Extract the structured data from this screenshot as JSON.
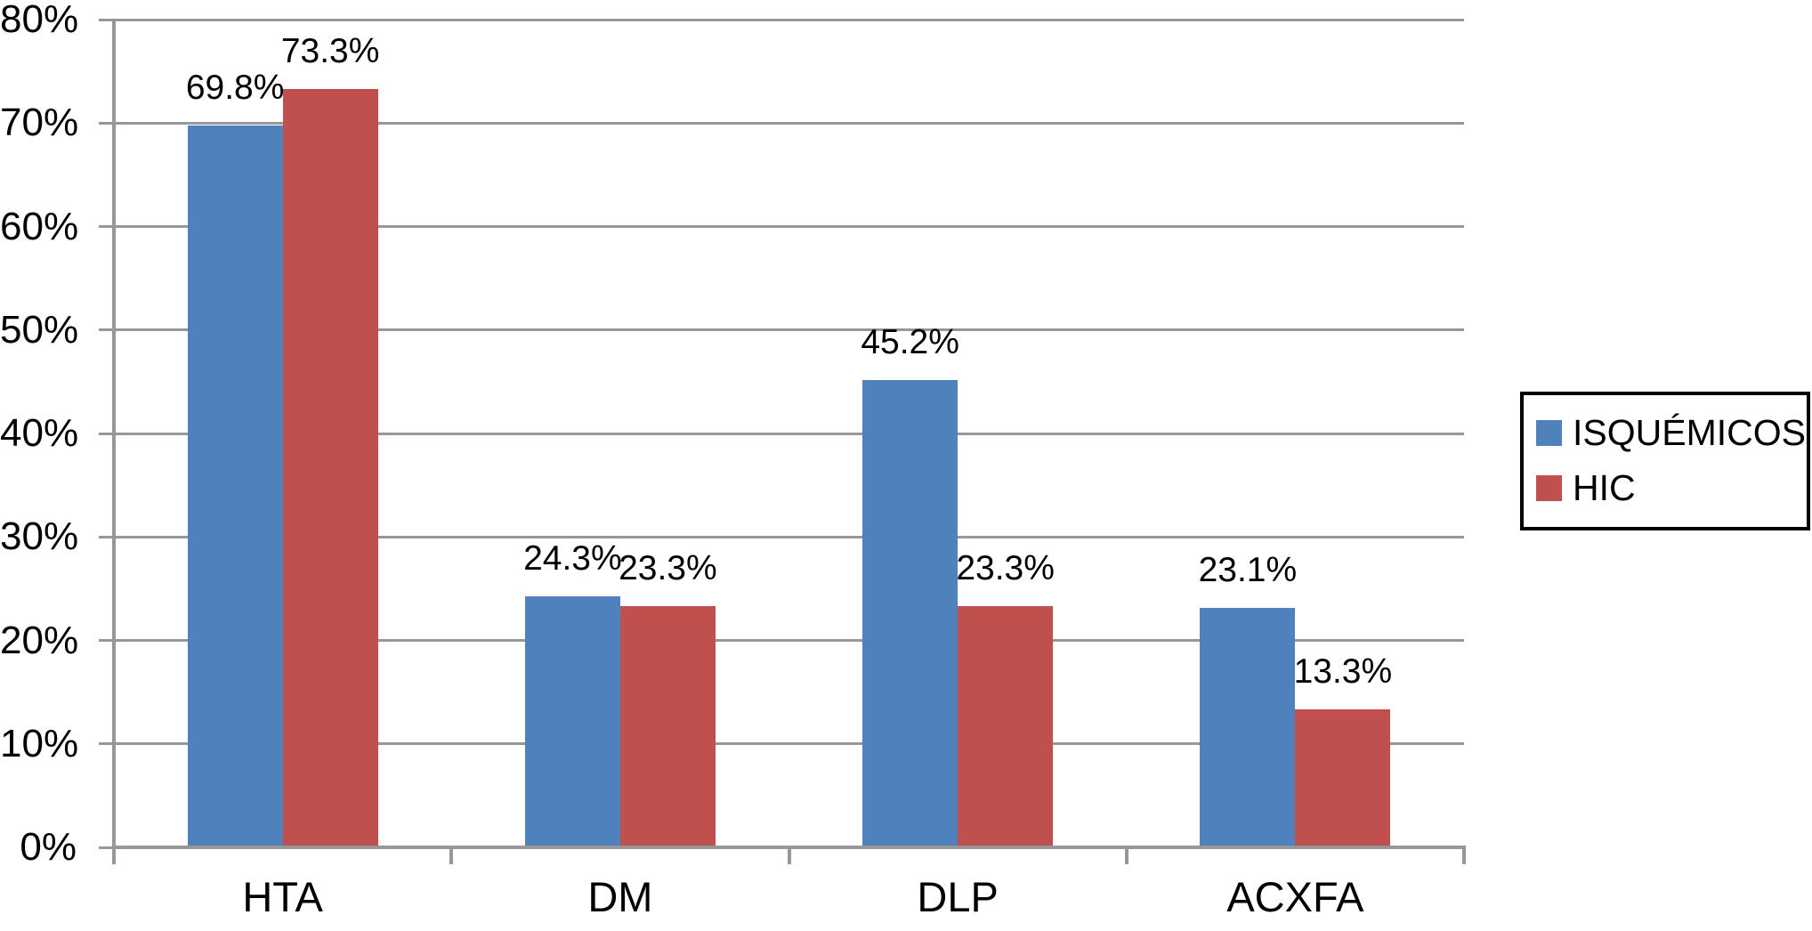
{
  "chart_data": {
    "type": "bar",
    "title": "",
    "categories": [
      "HTA",
      "DM",
      "DLP",
      "ACXFA"
    ],
    "series": [
      {
        "name": "ISQUÉMICOS",
        "color": "#4F81BD",
        "values": [
          69.8,
          24.3,
          45.2,
          23.1
        ]
      },
      {
        "name": "HIC",
        "color": "#C0504D",
        "values": [
          73.3,
          23.3,
          23.3,
          13.3
        ]
      }
    ],
    "data_labels": [
      [
        "69.8%",
        "24.3%",
        "45.2%",
        "23.1%"
      ],
      [
        "73.3%",
        "23.3%",
        "23.3%",
        "13.3%"
      ]
    ],
    "y_axis": {
      "min": 0,
      "max": 80,
      "step": 10,
      "tick_labels": [
        "0%",
        "10%",
        "20%",
        "30%",
        "40%",
        "50%",
        "60%",
        "70%",
        "80%"
      ]
    },
    "x_axis": {
      "tick_labels": [
        "HTA",
        "DM",
        "DLP",
        "ACXFA"
      ]
    },
    "grid": true,
    "legend_position": "right"
  },
  "colors": {
    "axis": "#979797",
    "gridline": "#979797",
    "text": "#000000",
    "legend_border": "#000000",
    "background": "#ffffff"
  }
}
